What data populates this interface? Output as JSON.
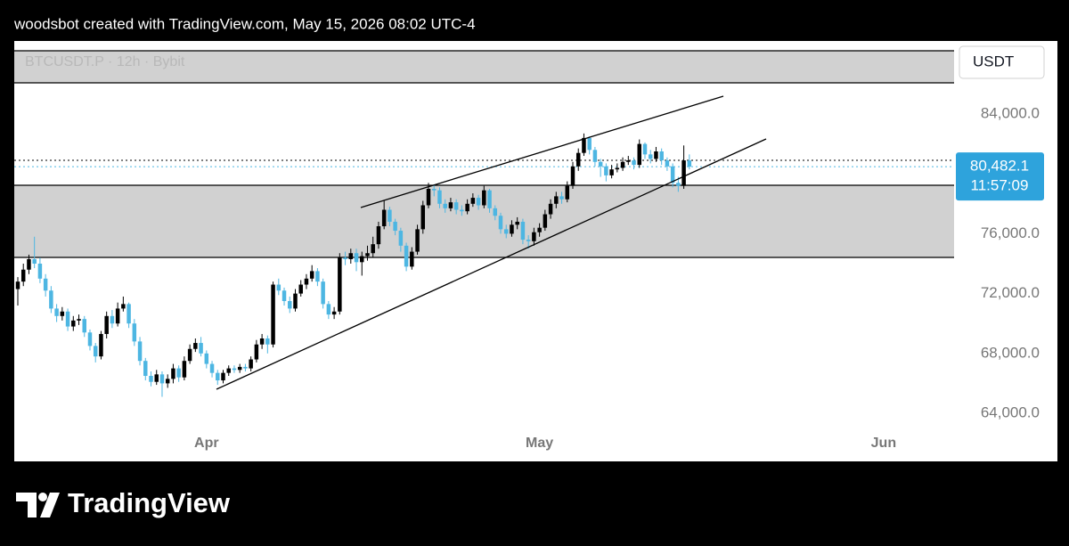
{
  "header": "woodsbot created with TradingView.com, May 15, 2026 08:02 UTC-4",
  "footer_brand": "TradingView",
  "chart_data": {
    "type": "candlestick",
    "title": "BTCUSDT.P · 12h · Bybit",
    "currency": "USDT",
    "up_color": "#000000",
    "down_color": "#4db6e2",
    "xlim": [
      -0.64,
      168.7
    ],
    "xticks": [
      {
        "value": 34,
        "label": "Apr"
      },
      {
        "value": 94,
        "label": "May"
      },
      {
        "value": 156,
        "label": "Jun"
      }
    ],
    "ylim": [
      60786,
      88881
    ],
    "yticks": [
      {
        "value": 64000,
        "label": "64,000.0"
      },
      {
        "value": 68000,
        "label": "68,000.0"
      },
      {
        "value": 72000,
        "label": "72,000.0"
      },
      {
        "value": 76000,
        "label": "76,000.0"
      },
      {
        "value": 84000,
        "label": "84,000.0"
      }
    ],
    "last_price": {
      "value": 80482.1,
      "label": "80,482.1"
    },
    "countdown": "11:57:09",
    "open": [
      72300,
      72800,
      73600,
      74300,
      74000,
      73000,
      72200,
      71000,
      70500,
      70800,
      69800,
      70200,
      70300,
      69400,
      68500,
      67800,
      69300,
      70500,
      70000,
      71000,
      71300,
      70000,
      68800,
      67500,
      66500,
      66100,
      66600,
      66000,
      66300,
      67000,
      66400,
      67500,
      68300,
      68700,
      68000,
      67300,
      66700,
      66200,
      66700,
      67000,
      66900,
      67100,
      67000,
      67600,
      68600,
      69000,
      68600,
      72600,
      72200,
      71500,
      71000,
      72000,
      72600,
      73000,
      73500,
      72800,
      71300,
      70600,
      70800,
      74400,
      74300,
      74700,
      74100,
      74500,
      74700,
      75300,
      76500,
      77600,
      76800,
      76200,
      75200,
      73800,
      74800,
      76300,
      77900,
      79000,
      78900,
      78000,
      77700,
      78100,
      77600,
      77500,
      78000,
      78400,
      77900,
      78900,
      77700,
      77200,
      76300,
      76000,
      76600,
      76800,
      75600,
      75500,
      76100,
      76400,
      77300,
      78000,
      78500,
      78300,
      79200,
      80500,
      81400,
      82400,
      81600,
      80800,
      80500,
      79900,
      80300,
      80400,
      80800,
      80900,
      80600,
      82000,
      81300,
      81000,
      81500,
      80900,
      80500,
      79400,
      79200,
      80900
    ],
    "high": [
      73100,
      74000,
      74600,
      75800,
      74400,
      73300,
      72500,
      71300,
      71100,
      71000,
      70500,
      70600,
      70500,
      69600,
      68700,
      69500,
      70800,
      70900,
      71400,
      71800,
      71400,
      70300,
      69100,
      67700,
      66800,
      66900,
      66800,
      66600,
      67300,
      67200,
      67800,
      68600,
      69000,
      69100,
      68200,
      67500,
      66900,
      66900,
      67200,
      67200,
      67300,
      67300,
      67800,
      68900,
      69300,
      69200,
      72800,
      73000,
      72400,
      71800,
      72300,
      72900,
      73300,
      73900,
      73700,
      73000,
      71500,
      71100,
      74700,
      74800,
      75000,
      75000,
      74800,
      75200,
      75800,
      76800,
      78200,
      77800,
      77000,
      76400,
      75400,
      75100,
      76600,
      78200,
      79400,
      79300,
      79100,
      78300,
      78400,
      78300,
      77900,
      78300,
      78700,
      78600,
      79200,
      79000,
      77900,
      77400,
      76600,
      76900,
      77100,
      77000,
      75900,
      76400,
      76700,
      77600,
      78300,
      78800,
      78800,
      79500,
      80800,
      81700,
      82700,
      82500,
      81800,
      81000,
      80700,
      80600,
      80700,
      81100,
      81200,
      81100,
      82300,
      82100,
      81600,
      81800,
      81700,
      81100,
      80700,
      79800,
      81900,
      81300
    ],
    "low": [
      71200,
      72500,
      73300,
      73700,
      72700,
      71800,
      70700,
      70100,
      70200,
      69500,
      69500,
      69900,
      69100,
      68200,
      67400,
      67600,
      69000,
      69700,
      69800,
      70800,
      69700,
      68500,
      67200,
      66200,
      65800,
      65900,
      65100,
      65700,
      66000,
      66100,
      66200,
      67300,
      68100,
      67800,
      67000,
      66400,
      65900,
      66000,
      66500,
      66700,
      66700,
      66800,
      66800,
      67400,
      68300,
      68000,
      68400,
      71900,
      71200,
      70700,
      70800,
      71800,
      72300,
      72800,
      72500,
      71000,
      70300,
      70300,
      70600,
      73900,
      74000,
      73500,
      73200,
      74200,
      74400,
      75000,
      76300,
      76500,
      75900,
      74800,
      73500,
      73600,
      74600,
      76000,
      77700,
      78500,
      77700,
      77400,
      77500,
      77300,
      77200,
      77300,
      77800,
      77600,
      77700,
      77400,
      76900,
      76000,
      75700,
      75800,
      76300,
      75300,
      75000,
      75200,
      75800,
      76200,
      77000,
      77700,
      78000,
      78100,
      79000,
      80200,
      81200,
      81300,
      80500,
      79800,
      79500,
      79700,
      80100,
      80200,
      80600,
      80300,
      80400,
      81000,
      80700,
      80800,
      80600,
      80200,
      79100,
      78800,
      79000,
      80300
    ],
    "close": [
      72800,
      73600,
      74300,
      74000,
      73000,
      72200,
      71000,
      70500,
      70800,
      69800,
      70200,
      70300,
      69400,
      68500,
      67800,
      69300,
      70500,
      70000,
      71000,
      71300,
      70000,
      68800,
      67500,
      66500,
      66100,
      66600,
      66000,
      66300,
      67000,
      66400,
      67500,
      68300,
      68700,
      68000,
      67300,
      66700,
      66200,
      66700,
      67000,
      66900,
      67100,
      67000,
      67600,
      68600,
      69000,
      68600,
      72600,
      72200,
      71500,
      71000,
      72000,
      72600,
      73000,
      73500,
      72800,
      71300,
      70600,
      70800,
      74400,
      74300,
      74700,
      74100,
      74500,
      74700,
      75300,
      76500,
      77600,
      76800,
      76200,
      75200,
      73800,
      74800,
      76300,
      77900,
      79000,
      78900,
      78000,
      77700,
      78100,
      77600,
      77500,
      78000,
      78400,
      77900,
      78900,
      77700,
      77200,
      76300,
      76000,
      76600,
      76800,
      75600,
      75500,
      76100,
      76400,
      77300,
      78000,
      78500,
      78300,
      79200,
      80500,
      81400,
      82400,
      81600,
      80800,
      80500,
      79900,
      80300,
      80400,
      80800,
      80900,
      80600,
      82000,
      81300,
      81000,
      81500,
      80900,
      80500,
      79400,
      79200,
      80900,
      80482.1
    ]
  }
}
